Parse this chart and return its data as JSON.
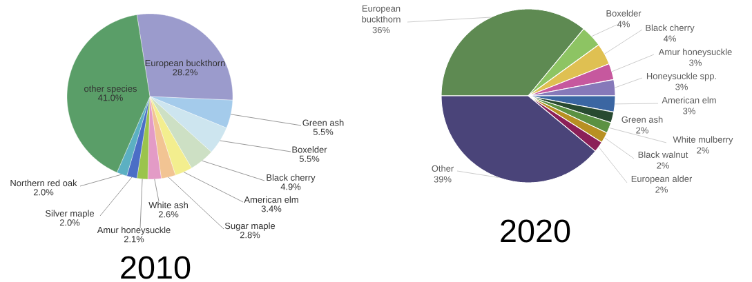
{
  "chart_data": [
    {
      "type": "pie",
      "title": "2010",
      "categories": [
        "European buckthorn",
        "Green ash",
        "Boxelder",
        "Black cherry",
        "American elm",
        "Sugar maple",
        "White ash",
        "Amur honeysuckle",
        "Silver maple",
        "Northern red oak",
        "other species"
      ],
      "values": [
        28.2,
        5.5,
        5.5,
        4.9,
        3.4,
        2.8,
        2.6,
        2.1,
        2.0,
        2.0,
        41.0
      ],
      "value_labels": [
        "28.2%",
        "5.5%",
        "5.5%",
        "4.9%",
        "3.4%",
        "2.8%",
        "2.6%",
        "2.1%",
        "2.0%",
        "2.0%",
        "41.0%"
      ],
      "colors": [
        "#9b9bcc",
        "#a4cbeb",
        "#cde5ef",
        "#cde0c4",
        "#f3ee8e",
        "#f2c493",
        "#e39bc6",
        "#9bc44c",
        "#4b6ec6",
        "#5cb0c2",
        "#5a9e68"
      ]
    },
    {
      "type": "pie",
      "title": "2020",
      "categories": [
        "European buckthorn",
        "Boxelder",
        "Black cherry",
        "Amur honeysuckle",
        "Honeysuckle spp.",
        "American elm",
        "Green ash",
        "White mulberry",
        "Black walnut",
        "European alder",
        "Other"
      ],
      "values": [
        36,
        4,
        4,
        3,
        3,
        3,
        2,
        2,
        2,
        2,
        39
      ],
      "value_labels": [
        "36%",
        "4%",
        "4%",
        "3%",
        "3%",
        "3%",
        "2%",
        "2%",
        "2%",
        "2%",
        "39%"
      ],
      "colors": [
        "#5e8a52",
        "#8dc463",
        "#dfc052",
        "#c6589e",
        "#8679b9",
        "#3b66a2",
        "#284a30",
        "#5b9142",
        "#b89022",
        "#8b2058",
        "#4a4479"
      ]
    }
  ]
}
